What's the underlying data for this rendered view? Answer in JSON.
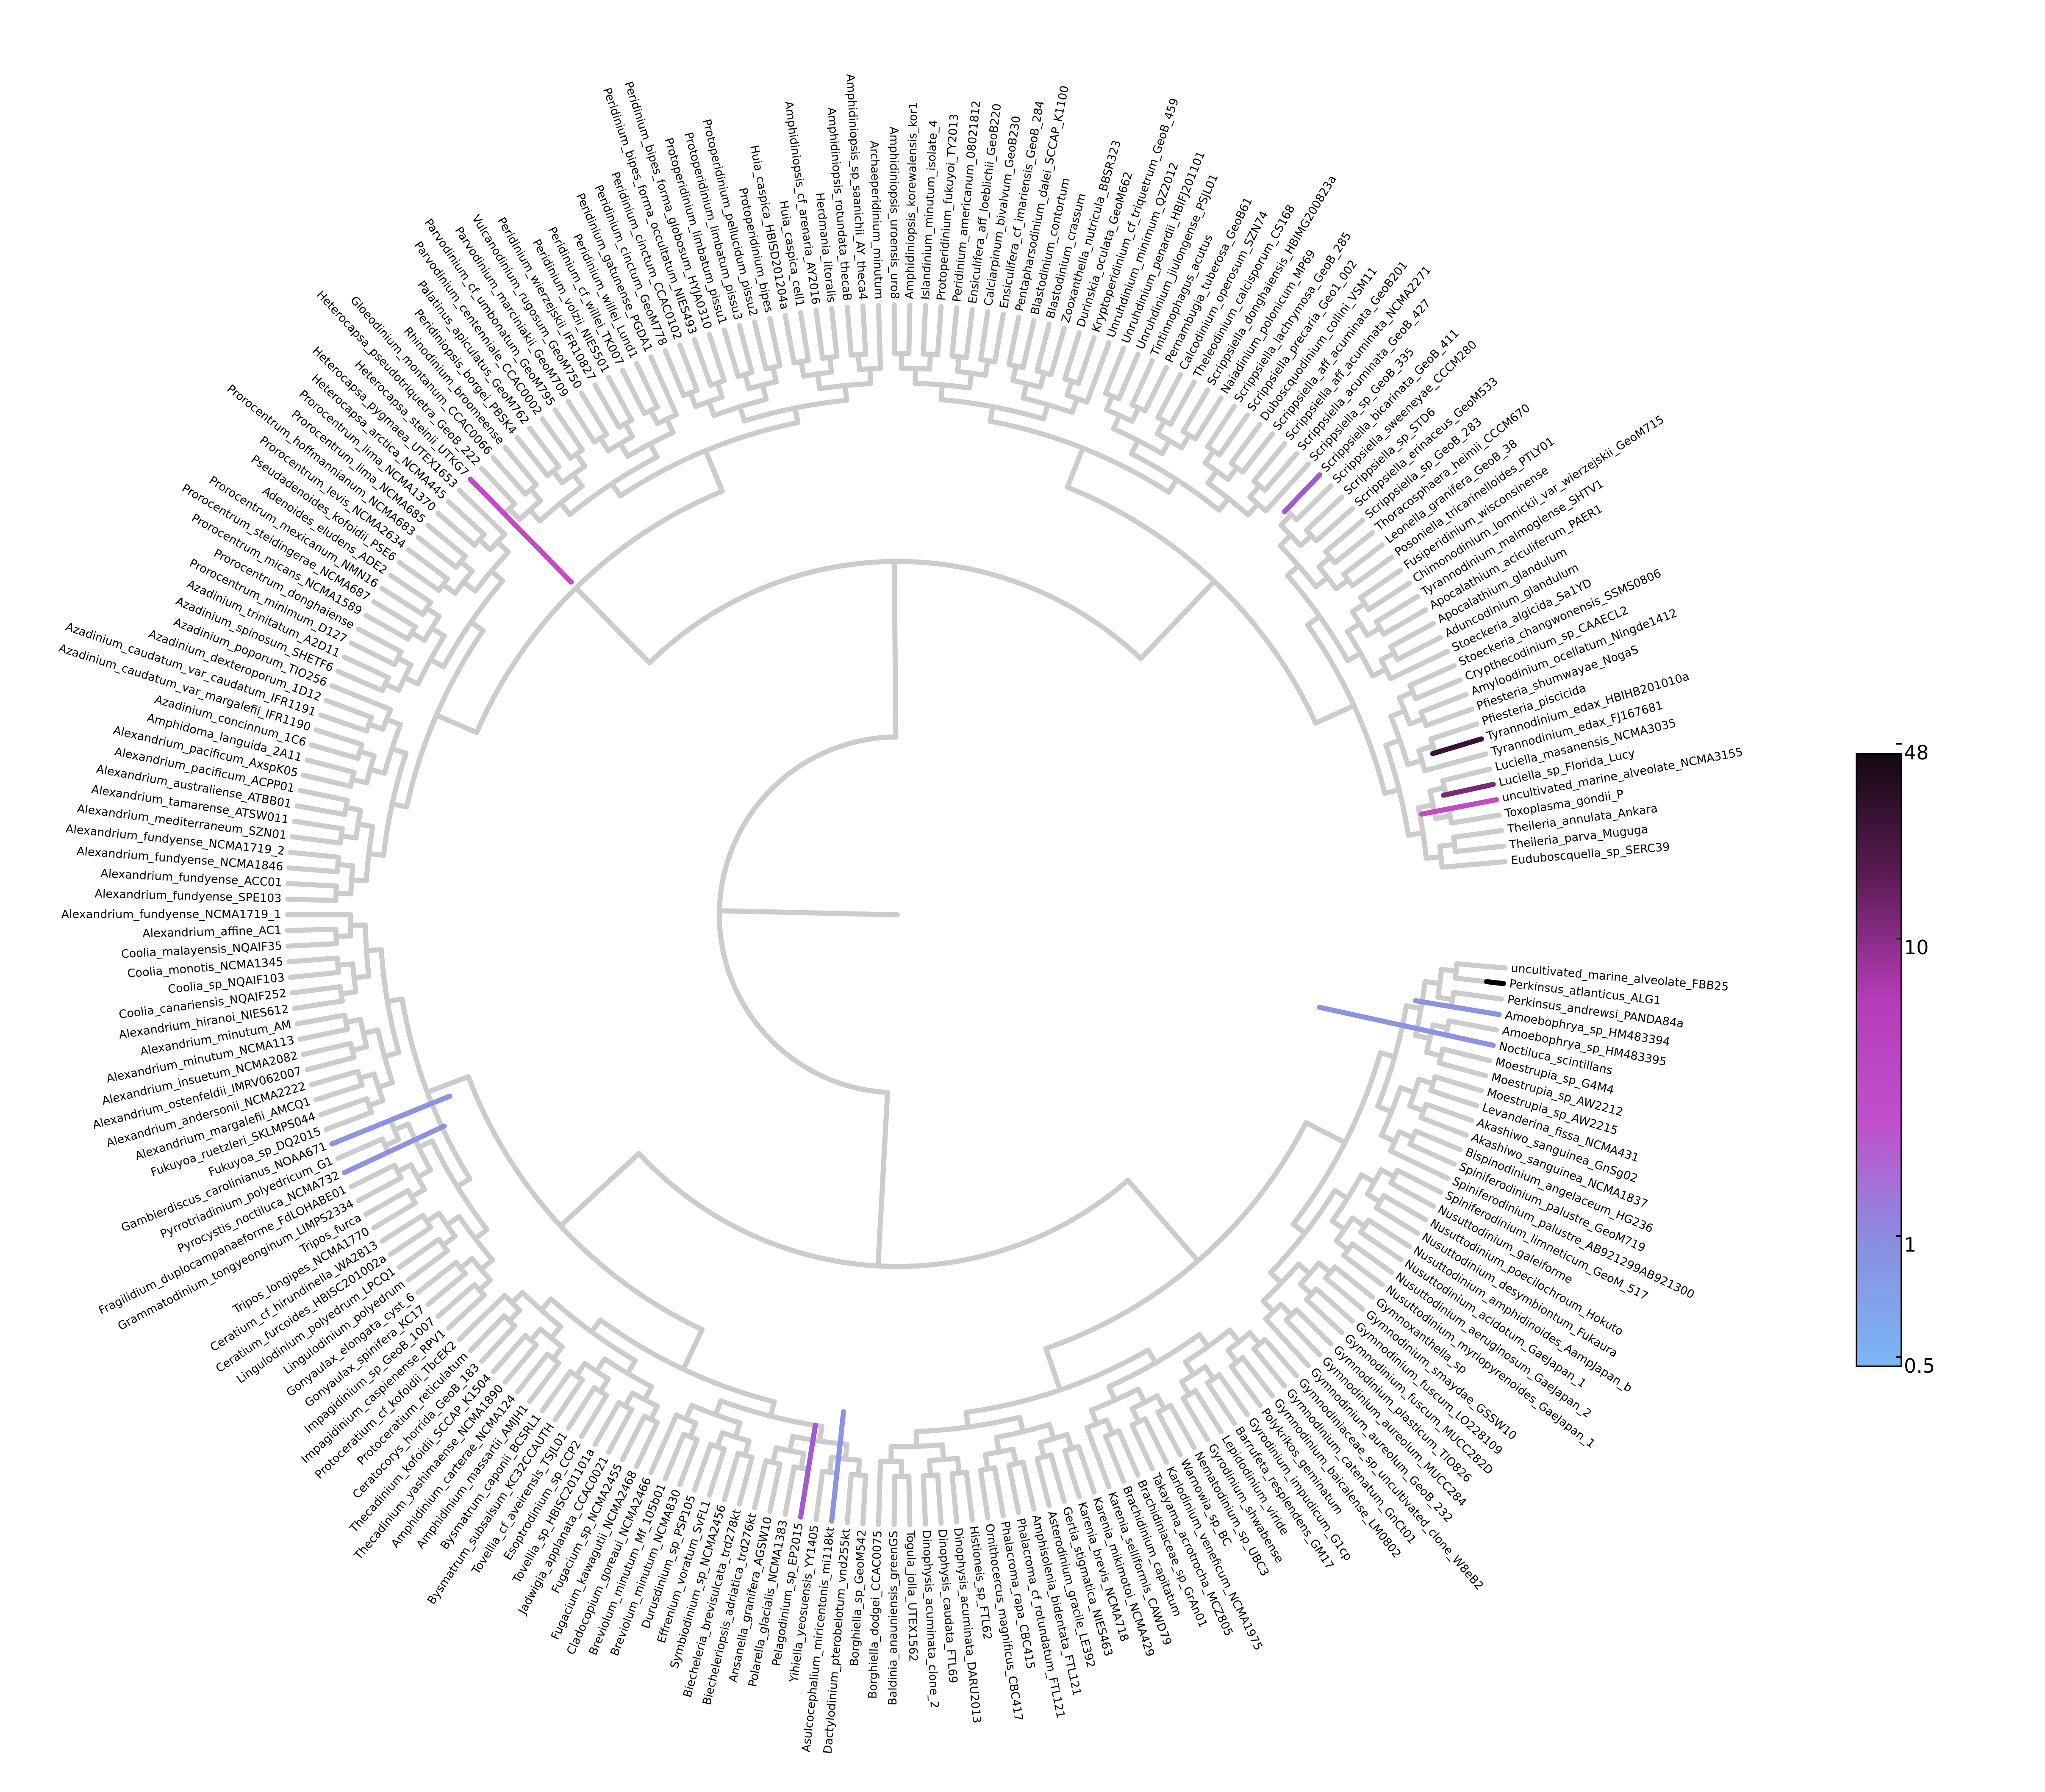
{
  "colorbar": {
    "tick_labels": [
      "48",
      "10",
      "1",
      "0.5"
    ],
    "tick_values": [
      48,
      10,
      1,
      0.5
    ],
    "scale": "log",
    "gradient_colors": [
      "#130810",
      "#5c1c54",
      "#b53cb8",
      "#c04fcc",
      "#8a8fe0",
      "#7ab6f5"
    ]
  },
  "branch_colors": {
    "default": "#cccccc",
    "blue": "#8c93e6",
    "violet": "#a25ad2",
    "magenta": "#c24bc4",
    "purple": "#7a2a78",
    "dark": "#3a1238",
    "black": "#000000"
  },
  "taxa": [
    "uncultivated_marine_alveolate_FBB25",
    "Perkinsus_atlanticus_ALG1",
    "Perkinsus_andrewsi_PANDA84a",
    "Amoebophrya_sp_HM483394",
    "Amoebophrya_sp_HM483395",
    "Noctiluca_scintillans",
    "Moestrupia_sp_G4M4",
    "Moestrupia_sp_AW2212",
    "Moestrupia_sp_AW2215",
    "Levanderina_fissa_NCMA431",
    "Akashiwo_sanguinea_GnSg02",
    "Akashiwo_sanguinea_NCMA1837",
    "Bispinodinium_angelaceum_HG236",
    "Spiniferodinium_palustre_GeoM719",
    "Spiniferodinium_palustre_AB921299AB921300",
    "Spiniferodinium_limneticum_GeoM_517",
    "Nusuttodinium_galeiforme",
    "Nusuttodinium_poecilochroum_Hokuto",
    "Nusuttodinium_desymbiontum_Fukaura",
    "Nusuttodinium_amphidinoides_AampJapan_b",
    "Nusuttodinium_acidotum_GaeJapan_1",
    "Nusuttodinium_aeruginosum_GaeJapan_2",
    "Nusuttodinium_myriopyrenoides_GaeJapan_1",
    "Gymnoxanthella_sp",
    "Gymnodinium_smaydae_GSSW10",
    "Gymnodinium_fuscum_LO228109",
    "Gymnodinium_fuscum_MUCC282D",
    "Gymnodinium_plasticum_TIO826",
    "Gymnodinium_aureolum_MUCC284",
    "Gymnodinium_aureolum_GeoB_232",
    "Gymnodiniaceae_sp_uncultivated_clone_W8eB2",
    "Gymnodinium_catenatum_GnCt01",
    "Gymnodinium_baicalense_LM0802",
    "Polykrikos_geminatum",
    "Gyrodinium_impudicum_G1cp",
    "Barrufeta_resplendens_GM17",
    "Lepidodinium_viride",
    "Gyrodinium_shwabense",
    "Nematodinium_sp_UBC3",
    "Warnowia_sp_BC",
    "Karlodinium_veneficum_NCMA1975",
    "Takayama_acrotrocha_MCZ805",
    "Brachidiniaceae_sp_GrAn01",
    "Brachidinium_capitatum",
    "Karenia_selliformis_CAWD79",
    "Karenia_mikimotoi_NCMA429",
    "Karenia_brevis_NCMA718",
    "Gertia_stigmatica_NIES463",
    "Asterodinium_gracile_LE392",
    "Amphisolenia_bidentata_FTL121",
    "Phalacroma_cf_rotundatum_FTL121",
    "Phalacroma_rapa_CBC415",
    "Ornithocercus_magnificus_CBC417",
    "Histioneis_sp_FTL62",
    "Dinophysis_acuminata_DARU2013",
    "Dinophysis_caudata_FTL69",
    "Dinophysis_acuminata_clone_2",
    "Togula_jolla_UTEX1562",
    "Baldinia_anauniensis_greenGS",
    "Borghiella_dodgei_CCAC0075",
    "Borghiella_sp_GeoM542",
    "Dactylodinium_pterobelotum_vnd255kt",
    "Asulcocephalium_miricentonis_mi118kt",
    "Yihiella_yeosuensis_YY1405",
    "Pelagodinium_sp_EP2015",
    "Polarella_glacialis_NCMA1383",
    "Ansanella_granifera_AGSW10",
    "Biecheleriopsis_adriatica_trd276kt",
    "Biecheleria_brevisulcata_trd278kt",
    "Symbiodinium_sp_NCMA2456",
    "Effrenium_voratum_SvFL1",
    "Durusdinium_sp_PSP105",
    "Breviolum_minutum_NCMA830",
    "Breviolum_minutum_Mf_105b01",
    "Cladocopium_goreaui_NCMA2466",
    "Fugacium_kawagutii_NCMA2468",
    "Fugacium_sp_NCMA2455",
    "Jadwigia_applanata_CCAC0021",
    "Tovellia_sp_HBISC201101a",
    "Esoptrodinium_sp_CCP2",
    "Tovellia_cf_aveirensis_TSJL01",
    "Bysmatrum_subsalsum_KC32CCAUTH",
    "Bysmatrum_caponii_BCSRL1",
    "Amphidinium_massartii_AMJH1",
    "Amphidinium_carterae_NCMA124",
    "Thecadinium_yashimaense_NCMA1890",
    "Thecadinium_kofoidii_SCCAP_K1504",
    "Ceratocorys_horrida_GeoB_183",
    "Protoceratium_reticulatum",
    "Protoceratium_cf_kofoidii_TbcEK2",
    "Impagidinium_caspienense_RPV1",
    "Impagidinium_sp_GeoB_1007",
    "Gonyaulax_spinifera_KC17",
    "Gonyaulax_elongata_cyst_6",
    "Lingulodinium_polyedrum",
    "Lingulodinium_polyedrum_LPCQ1",
    "Ceratium_furcoides_HBISC201002a",
    "Ceratium_cf_hirundinella_WA2813",
    "Tripos_longipes_NCMA1770",
    "Tripos_furca",
    "Grammatodinium_tongyeonginum_LIMPS2334",
    "Fragilidium_duplocampanaeforme_FdLOHABE01",
    "Pyrocystis_noctiluca_NCMA732",
    "Pyrrotriadinium_polyedricum_G1",
    "Gambierdiscus_carolinianus_NOAA671",
    "Fukuyoa_sp_DQ2015",
    "Fukuyoa_ruetzleri_SKLMPS044",
    "Alexandrium_margalefii_AMCQ1",
    "Alexandrium_andersonii_NCMA2222",
    "Alexandrium_ostenfeldii_IMRV062007",
    "Alexandrium_insuetum_NCMA2082",
    "Alexandrium_minutum_NCMA113",
    "Alexandrium_minutum_AM",
    "Alexandrium_hiranoi_NIES612",
    "Coolia_canariensis_NQAIF252",
    "Coolia_sp_NQAIF103",
    "Coolia_monotis_NCMA1345",
    "Coolia_malayensis_NQAIF35",
    "Alexandrium_affine_AC1",
    "Alexandrium_fundyense_NCMA1719_1",
    "Alexandrium_fundyense_SPE103",
    "Alexandrium_fundyense_ACC01",
    "Alexandrium_fundyense_NCMA1846",
    "Alexandrium_fundyense_NCMA1719_2",
    "Alexandrium_mediterraneum_SZN01",
    "Alexandrium_tamarense_ATSW011",
    "Alexandrium_australiense_ATBB01",
    "Alexandrium_pacificum_ACPP01",
    "Alexandrium_pacificum_AxspK05",
    "Amphidoma_languida_2A11",
    "Azadinium_concinnum_1C6",
    "Azadinium_caudatum_var_margalefii_IFR1190",
    "Azadinium_caudatum_var_caudatum_IFR1191",
    "Azadinium_dexteroporum_1D12",
    "Azadinium_poporum_TIO256",
    "Azadinium_spinosum_SHETF6",
    "Azadinium_trinitatum_A2D11",
    "Prorocentrum_minimum_D127",
    "Prorocentrum_donghaiense",
    "Prorocentrum_micans_NCMA1589",
    "Prorocentrum_steidingerae_NCMA687",
    "Prorocentrum_mexicanum_NMN16",
    "Adenoides_eludens_ADE2",
    "Pseudadenoides_kofoidii_PSE6",
    "Prorocentrum_levis_NCMA2634",
    "Prorocentrum_hoffmannianum_NCMA683",
    "Prorocentrum_lima_NCMA685",
    "Prorocentrum_lima_NCMA1370",
    "Heterocapsa_arctica_NCMA445",
    "Heterocapsa_pygmaea_UTEX1653",
    "Heterocapsa_steinii_UTKG7",
    "Heterocapsa_pseudotriquetra_GeoB_222",
    "Gloeodinium_montanum_CCAC0066",
    "Rhinodinium_broomeense",
    "Peridiniopsis_borgei_PBSK4",
    "Palatinus_apiculatus_GeoM762",
    "Parvodinium_centenniale_CCAC0002",
    "Parvodinium_cf_umbonatum_GeoM795",
    "Parvodinium_marciniakii_GeoM709",
    "Vulcanodinium_rugosum_GeoM750",
    "Peridinium_wierzejskii_IFR10827",
    "Peridinium_volzii_NIES501",
    "Peridinium_cf_willei_TK007",
    "Peridinium_willei_Lund1",
    "Peridinium_gatunense_PGDA1",
    "Peridinium_cinctum_GeoM778",
    "Peridinium_cinctum_CCAC0102",
    "Peridinium_bipes_forma_occultatum_NIES493",
    "Peridinium_bipes_forma_globosum_HYJA0310",
    "Protoperidinium_limbatum_pissu1",
    "Protoperidinium_limbatum_pissu3",
    "Protoperidinium_pellucidum_pissu2",
    "Protoperidinium_bipes",
    "Huia_caspica_HBISD201204a",
    "Huia_caspica_cell1",
    "Amphidiniopsis_cf_arenaria_AY2016",
    "Herdmania_litoralis",
    "Amphidiniopsis_rotundata_thecaB",
    "Amphidiniopsis_sp_saanichii_AY_theca4",
    "Archaeperidinium_minutum",
    "Amphidiniopsis_uroensis_uro8",
    "Amphidiniopsis_korewalensis_kor1",
    "Islandinium_minutum_isolate_4",
    "Protoperidinium_fukuyoi_TY2013",
    "Peridinium_americanum_08021812",
    "Ensiculifera_aff_loeblichii_GeoB220",
    "Calciarpinum_bivalvum_GeoB230",
    "Ensiculifera_cf_imariensis_GeoB_284",
    "Pentapharsodinium_dalei_SCCAP_K1100",
    "Blastodinium_contortum",
    "Blastodinium_crassum",
    "Zooxanthella_nutricula_BBSR323",
    "Durinskia_oculata_GeoM662",
    "Kryptoperidinium_cf_triquetrum_GeoB_459",
    "Unruhdinium_minimum_QZ2012",
    "Unruhdinium_penardii_HBIFJ201101",
    "Unruhdinium_jiulongense_PSJL01",
    "Tintinnophagus_acutus",
    "Pernambugia_tuberosa_GeoB61",
    "Calcodinium_operosum_SZN74",
    "Theleodinium_calcisporum_CS168",
    "Scrippsiella_donghaiensis_HBIMG200823a",
    "Naiadinium_polonicum_MP69",
    "Scrippsiella_lachrymosa_GeoB_285",
    "Scrippsiella_precaria_Geo1_002",
    "Duboscquodinium_collini_VSM11",
    "Scrippsiella_aff_acuminata_GeoB201",
    "Scrippsiella_aff_acuminata_NCMA2271",
    "Scrippsiella_acuminata_GeoB_427",
    "Scrippsiella_sp_GeoB_335",
    "Scrippsiella_bicarinata_GeoB_411",
    "Scrippsiella_sweeneyae_CCCM280",
    "Scrippsiella_sp_STD6",
    "Scrippsiella_erinaceus_GeoM533",
    "Scrippsiella_sp_GeoB_283",
    "Thoracosphaera_heimii_CCCM670",
    "Leonella_granifera_GeoB_38",
    "Posoniella_tricarinelloides_PTLY01",
    "Fusiperidinium_wisconsinense",
    "Chimonodinium_lomnickii_var_wierzejskii_GeoM715",
    "Tyrannodinium_malmogiense_SHTV1",
    "Apocalathium_aciculiferum_PAER1",
    "Apocalathium_glandulum",
    "Aduncodinium_glandulum",
    "Stoeckeria_algicida_Sa1YD",
    "Stoeckeria_changwonensis_SSMS0806",
    "Crypthecodinium_sp_CAAECL2",
    "Amyloodinium_ocellatum_Ningde1412",
    "Pfiesteria_shumwayae_NogaS",
    "Pfiesteria_piscicida",
    "Tyrannodinium_edax_HBIHB201010a",
    "Tyrannodinium_edax_FJ167681",
    "Luciella_masanensis_NCMA3035",
    "Luciella_sp_Florida_Lucy",
    "uncultivated_marine_alveolate_NCMA3155",
    "Toxoplasma_gondii_P",
    "Theileria_annulata_Ankara",
    "Theileria_parva_Muguga",
    "Euduboscquella_sp_SERC39"
  ]
}
